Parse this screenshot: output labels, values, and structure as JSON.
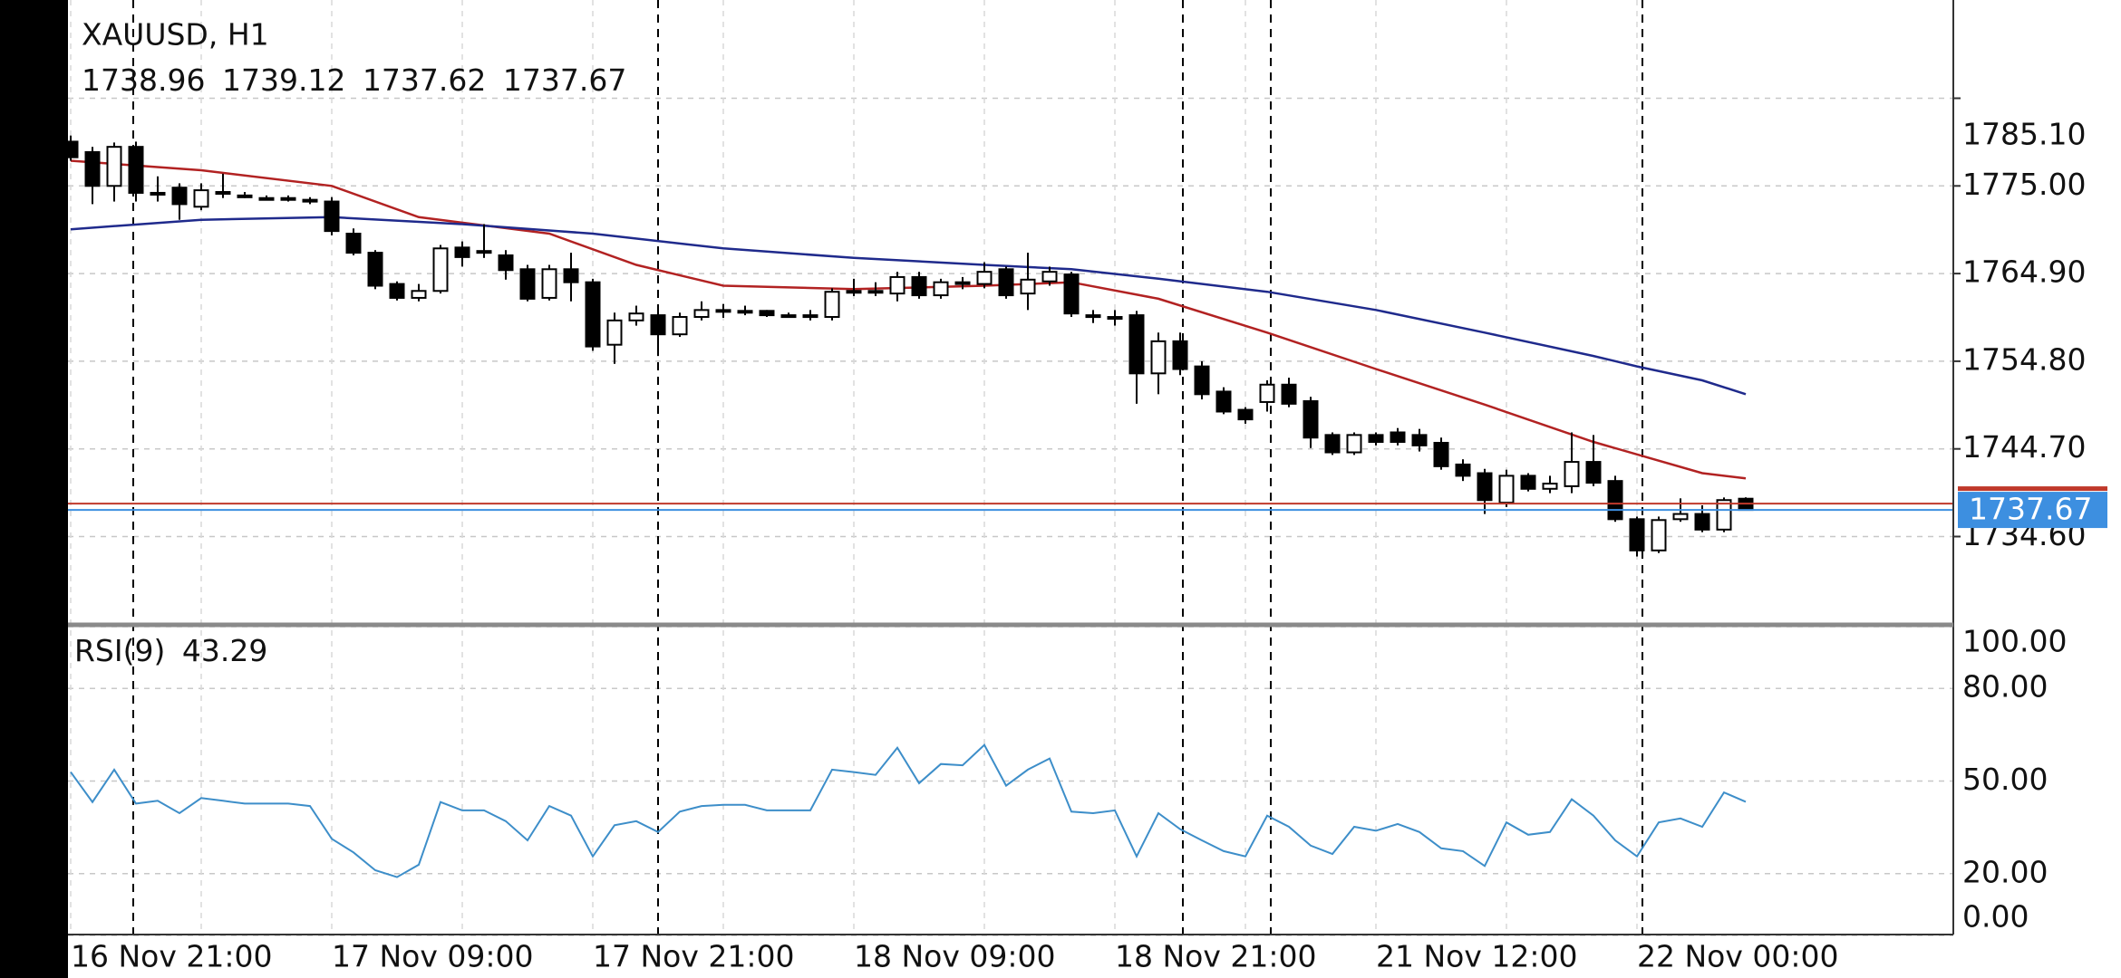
{
  "chart_data": {
    "type": "candlestick",
    "title": "XAUUSD, H1",
    "categories": [
      "16 Nov 21:00",
      null,
      null,
      null,
      null,
      null,
      null,
      null,
      null,
      null,
      null,
      null,
      "17 Nov 09:00",
      null,
      null,
      null,
      null,
      null,
      null,
      null,
      null,
      null,
      null,
      null,
      "17 Nov 21:00",
      null,
      null,
      null,
      null,
      null,
      null,
      null,
      null,
      null,
      null,
      null,
      "18 Nov 09:00",
      null,
      null,
      null,
      null,
      null,
      null,
      null,
      null,
      null,
      null,
      null,
      "18 Nov 21:00",
      null,
      null,
      null,
      null,
      null,
      null,
      null,
      null,
      null,
      null,
      null,
      "21 Nov 12:00",
      null,
      null,
      null,
      null,
      null,
      null,
      null,
      null,
      null,
      null,
      null,
      "22 Nov 00:00",
      null,
      null,
      null,
      null,
      null
    ],
    "open": [
      1780.1,
      1778.9,
      1775.0,
      1779.5,
      1774.2,
      1774.8,
      1772.6,
      1774.3,
      1773.9,
      1773.6,
      1773.6,
      1773.4,
      1773.2,
      1769.5,
      1767.3,
      1763.7,
      1762.1,
      1762.9,
      1767.9,
      1767.5,
      1767.0,
      1765.4,
      1762.1,
      1765.4,
      1763.9,
      1756.7,
      1759.5,
      1760.1,
      1757.9,
      1759.9,
      1760.7,
      1760.6,
      1760.6,
      1760.1,
      1760.1,
      1759.9,
      1762.9,
      1762.9,
      1762.6,
      1764.5,
      1762.4,
      1763.9,
      1763.7,
      1765.4,
      1762.6,
      1764.0,
      1764.8,
      1760.1,
      1759.9,
      1760.1,
      1753.4,
      1757.1,
      1754.2,
      1751.3,
      1749.2,
      1750.1,
      1752.1,
      1750.2,
      1746.3,
      1744.3,
      1746.3,
      1746.6,
      1746.3,
      1745.4,
      1742.9,
      1741.9,
      1738.5,
      1741.6,
      1740.1,
      1740.4,
      1743.2,
      1741.0,
      1736.6,
      1733.0,
      1736.6,
      1737.2,
      1735.4,
      1738.96
    ],
    "high": [
      1780.8,
      1779.5,
      1780.0,
      1780.1,
      1776.1,
      1775.3,
      1775.3,
      1776.4,
      1774.3,
      1773.9,
      1773.9,
      1773.7,
      1773.7,
      1770.1,
      1767.6,
      1764.0,
      1763.7,
      1768.2,
      1768.6,
      1770.6,
      1767.6,
      1765.9,
      1765.9,
      1767.3,
      1764.3,
      1760.4,
      1761.2,
      1760.7,
      1760.4,
      1761.7,
      1761.4,
      1761.2,
      1760.7,
      1760.4,
      1760.7,
      1763.2,
      1764.3,
      1763.9,
      1765.1,
      1765.1,
      1764.3,
      1764.5,
      1766.2,
      1765.7,
      1767.3,
      1765.7,
      1765.1,
      1760.7,
      1760.7,
      1760.6,
      1758.1,
      1758.1,
      1754.8,
      1751.8,
      1749.5,
      1752.6,
      1752.9,
      1750.7,
      1746.6,
      1746.6,
      1746.6,
      1747.1,
      1747.0,
      1746.0,
      1743.5,
      1742.4,
      1742.3,
      1741.9,
      1741.6,
      1746.6,
      1746.3,
      1741.6,
      1736.9,
      1736.9,
      1739.0,
      1738.2,
      1739.1,
      1739.12
    ],
    "low": [
      1777.9,
      1772.9,
      1773.2,
      1773.2,
      1773.2,
      1771.1,
      1772.2,
      1773.6,
      1773.6,
      1773.4,
      1773.2,
      1772.9,
      1769.3,
      1767.0,
      1763.1,
      1761.8,
      1761.7,
      1762.6,
      1765.7,
      1766.7,
      1764.2,
      1761.7,
      1761.8,
      1761.7,
      1756.0,
      1754.5,
      1758.9,
      1755.4,
      1757.6,
      1759.5,
      1759.8,
      1760.1,
      1759.9,
      1759.8,
      1759.5,
      1759.5,
      1762.3,
      1762.3,
      1761.7,
      1762.0,
      1762.0,
      1763.1,
      1763.2,
      1762.0,
      1760.7,
      1763.5,
      1759.9,
      1759.2,
      1758.9,
      1749.9,
      1751.0,
      1753.2,
      1750.4,
      1748.7,
      1747.6,
      1749.0,
      1749.5,
      1744.8,
      1744.0,
      1744.0,
      1745.1,
      1745.1,
      1744.4,
      1742.3,
      1741.0,
      1737.2,
      1738.0,
      1739.8,
      1739.6,
      1739.6,
      1740.4,
      1736.3,
      1732.3,
      1732.7,
      1736.3,
      1735.1,
      1735.1,
      1737.62
    ],
    "close": [
      1778.3,
      1775.0,
      1779.5,
      1774.2,
      1774.0,
      1772.9,
      1774.5,
      1774.2,
      1773.9,
      1773.6,
      1773.5,
      1773.3,
      1769.8,
      1767.3,
      1763.5,
      1762.1,
      1762.9,
      1767.8,
      1766.8,
      1767.5,
      1765.3,
      1762.0,
      1765.4,
      1763.9,
      1756.5,
      1759.5,
      1760.3,
      1757.9,
      1759.9,
      1760.7,
      1760.7,
      1760.6,
      1760.1,
      1760.1,
      1760.1,
      1762.8,
      1762.9,
      1762.9,
      1764.5,
      1762.4,
      1763.9,
      1763.9,
      1765.1,
      1762.4,
      1764.2,
      1765.1,
      1760.3,
      1760.1,
      1759.9,
      1753.4,
      1757.1,
      1753.9,
      1751.0,
      1749.0,
      1748.1,
      1752.1,
      1749.9,
      1746.0,
      1744.3,
      1746.3,
      1745.5,
      1745.5,
      1745.1,
      1742.7,
      1741.6,
      1738.8,
      1741.6,
      1740.1,
      1740.7,
      1743.2,
      1740.8,
      1736.6,
      1733.0,
      1736.5,
      1737.2,
      1735.4,
      1738.8,
      1737.67
    ],
    "up_color": "#ffffff",
    "down_color": "#000000",
    "series": [
      {
        "color": "#b22222",
        "x": [
          0,
          6,
          12,
          16,
          22,
          26,
          30,
          36,
          42,
          46,
          50,
          55,
          60,
          65,
          70,
          75,
          77
        ],
        "values": [
          1777.9,
          1776.8,
          1775.0,
          1771.4,
          1769.5,
          1765.9,
          1763.5,
          1763.1,
          1763.5,
          1763.9,
          1762.0,
          1758.1,
          1753.9,
          1749.8,
          1745.5,
          1741.9,
          1741.3
        ]
      },
      {
        "color": "#1f2a8c",
        "x": [
          0,
          6,
          12,
          18,
          24,
          30,
          36,
          42,
          46,
          50,
          55,
          60,
          65,
          70,
          72,
          75,
          77
        ],
        "values": [
          1770.0,
          1771.1,
          1771.4,
          1770.6,
          1769.5,
          1767.8,
          1766.7,
          1765.9,
          1765.4,
          1764.3,
          1762.8,
          1760.7,
          1758.1,
          1755.4,
          1754.2,
          1752.6,
          1751.0
        ]
      }
    ],
    "bid_color": "#3d8fe0",
    "ask": 1738.4,
    "ask_color": "#c0392b",
    "ylim": [
      1724.74,
      1796.42
    ],
    "yticks": [
      {
        "value": 1785.1,
        "label": "1785.10"
      },
      {
        "value": 1775,
        "label": "1775.00"
      },
      {
        "value": 1764.9,
        "label": "1764.90"
      },
      {
        "value": 1754.8,
        "label": "1754.80"
      },
      {
        "value": 1744.7,
        "label": "1744.70"
      },
      {
        "value": 1734.6,
        "label": "1734.60"
      }
    ],
    "grid": true,
    "indicator": {
      "label": "RSI(9)",
      "color": "#3d8ec9",
      "values": [
        52.9,
        43.2,
        53.7,
        42.7,
        43.6,
        39.6,
        44.5,
        43.6,
        42.7,
        42.7,
        42.7,
        41.9,
        31.3,
        26.9,
        21.1,
        18.9,
        22.9,
        43.2,
        40.5,
        40.5,
        37.0,
        30.8,
        41.9,
        38.8,
        25.6,
        35.7,
        37.0,
        33.5,
        40.1,
        41.9,
        42.3,
        42.3,
        40.5,
        40.5,
        40.5,
        53.7,
        52.9,
        52.0,
        60.8,
        49.3,
        55.5,
        55.1,
        61.7,
        48.5,
        53.7,
        57.3,
        40.1,
        39.6,
        40.5,
        25.6,
        39.6,
        34.4,
        30.8,
        27.3,
        25.6,
        38.8,
        35.2,
        29.1,
        26.4,
        35.2,
        33.9,
        36.1,
        33.5,
        28.2,
        27.3,
        22.5,
        36.6,
        32.6,
        33.5,
        44.1,
        38.8,
        30.8,
        25.6,
        36.6,
        37.9,
        35.2,
        46.3,
        43.29
      ],
      "ylim": [
        0,
        100
      ],
      "yticks": [
        {
          "value": 100,
          "label": "100.00"
        },
        {
          "value": 80,
          "label": "80.00"
        },
        {
          "value": 50,
          "label": "50.00"
        },
        {
          "value": 20,
          "label": "20.00"
        },
        {
          "value": 0,
          "label": "0.00"
        }
      ]
    }
  }
}
